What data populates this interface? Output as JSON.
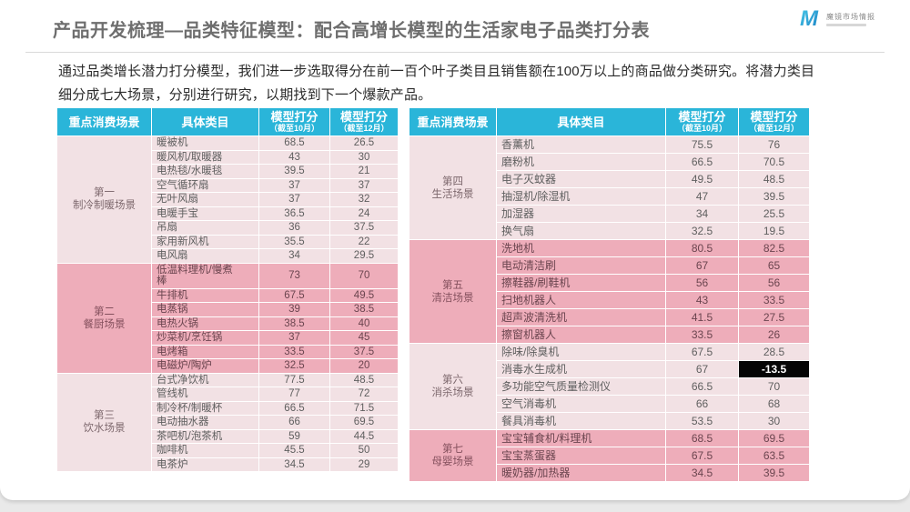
{
  "slide": {
    "title": "产品开发梳理—品类特征模型：配合高增长模型的生活家电子品类打分表",
    "intro_line1": "通过品类增长潜力打分模型，我们进一步选取得分在前一百个叶子类目且销售额在100万以上的商品做分类研究。将潜力类目",
    "intro_line2": "细分成七大场景，分别进行研究，以期找到下一个爆款产品。"
  },
  "logo": {
    "mark": "M",
    "name": "魔镜市场情报"
  },
  "colors": {
    "header_cyan": "#2ab5d9",
    "block_light_pink": "#f2e1e4",
    "block_dark_pink": "#eeadba",
    "highlight_bg": "#050505",
    "highlight_text": "#ffffff",
    "title_gray": "#6e6e6e"
  },
  "headers": {
    "scene": "重点消费场景",
    "category": "具体类目",
    "score_oct": "模型打分",
    "score_oct_period": "（截至10月）",
    "score_dec": "模型打分",
    "score_dec_period": "（截至12月）"
  },
  "tables": [
    {
      "id": "left",
      "scenes": [
        {
          "name_line1": "第一",
          "name_line2": "制冷制暖场景",
          "tone": "light",
          "rows": [
            {
              "category": "暖被机",
              "oct": "68.5",
              "dec": "26.5"
            },
            {
              "category": "暖风机/取暖器",
              "oct": "43",
              "dec": "30"
            },
            {
              "category": "电热毯/水暖毯",
              "oct": "39.5",
              "dec": "21"
            },
            {
              "category": "空气循环扇",
              "oct": "37",
              "dec": "37"
            },
            {
              "category": "无叶风扇",
              "oct": "37",
              "dec": "32"
            },
            {
              "category": "电暖手宝",
              "oct": "36.5",
              "dec": "24"
            },
            {
              "category": "吊扇",
              "oct": "36",
              "dec": "37.5"
            },
            {
              "category": "家用新风机",
              "oct": "35.5",
              "dec": "22"
            },
            {
              "category": "电风扇",
              "oct": "34",
              "dec": "29.5"
            }
          ]
        },
        {
          "name_line1": "第二",
          "name_line2": "餐厨场景",
          "tone": "dark",
          "rows": [
            {
              "category": "低温料理机/慢煮\n棒",
              "oct": "73",
              "dec": "70"
            },
            {
              "category": "牛排机",
              "oct": "67.5",
              "dec": "49.5"
            },
            {
              "category": "电蒸锅",
              "oct": "39",
              "dec": "38.5"
            },
            {
              "category": "电热火锅",
              "oct": "38.5",
              "dec": "40"
            },
            {
              "category": "炒菜机/烹饪锅",
              "oct": "37",
              "dec": "45"
            },
            {
              "category": "电烤箱",
              "oct": "33.5",
              "dec": "37.5"
            },
            {
              "category": "电磁炉/陶炉",
              "oct": "32.5",
              "dec": "20"
            }
          ]
        },
        {
          "name_line1": "第三",
          "name_line2": "饮水场景",
          "tone": "light",
          "rows": [
            {
              "category": "台式净饮机",
              "oct": "77.5",
              "dec": "48.5"
            },
            {
              "category": "管线机",
              "oct": "77",
              "dec": "72"
            },
            {
              "category": "制冷杯/制暖杯",
              "oct": "66.5",
              "dec": "71.5"
            },
            {
              "category": "电动抽水器",
              "oct": "66",
              "dec": "69.5"
            },
            {
              "category": "茶吧机/泡茶机",
              "oct": "59",
              "dec": "44.5"
            },
            {
              "category": "咖啡机",
              "oct": "45.5",
              "dec": "50"
            },
            {
              "category": "电茶炉",
              "oct": "34.5",
              "dec": "29"
            }
          ]
        }
      ]
    },
    {
      "id": "right",
      "scenes": [
        {
          "name_line1": "第四",
          "name_line2": "生活场景",
          "tone": "light",
          "rows": [
            {
              "category": "香薰机",
              "oct": "75.5",
              "dec": "76"
            },
            {
              "category": "磨粉机",
              "oct": "66.5",
              "dec": "70.5"
            },
            {
              "category": "电子灭蚊器",
              "oct": "49.5",
              "dec": "48.5"
            },
            {
              "category": "抽湿机/除湿机",
              "oct": "47",
              "dec": "39.5"
            },
            {
              "category": "加湿器",
              "oct": "34",
              "dec": "25.5"
            },
            {
              "category": "换气扇",
              "oct": "32.5",
              "dec": "19.5"
            }
          ]
        },
        {
          "name_line1": "第五",
          "name_line2": "清洁场景",
          "tone": "dark",
          "rows": [
            {
              "category": "洗地机",
              "oct": "80.5",
              "dec": "82.5"
            },
            {
              "category": "电动清洁刷",
              "oct": "67",
              "dec": "65"
            },
            {
              "category": "擦鞋器/刷鞋机",
              "oct": "56",
              "dec": "56"
            },
            {
              "category": "扫地机器人",
              "oct": "43",
              "dec": "33.5"
            },
            {
              "category": "超声波清洗机",
              "oct": "41.5",
              "dec": "27.5"
            },
            {
              "category": "擦窗机器人",
              "oct": "33.5",
              "dec": "26"
            }
          ]
        },
        {
          "name_line1": "第六",
          "name_line2": "消杀场景",
          "tone": "light",
          "rows": [
            {
              "category": "除味/除臭机",
              "oct": "67.5",
              "dec": "28.5"
            },
            {
              "category": "消毒水生成机",
              "oct": "67",
              "dec": "-13.5",
              "dec_highlight": true
            },
            {
              "category": "多功能空气质量检测仪",
              "oct": "66.5",
              "dec": "70"
            },
            {
              "category": "空气消毒机",
              "oct": "66",
              "dec": "68"
            },
            {
              "category": "餐具消毒机",
              "oct": "53.5",
              "dec": "30"
            }
          ]
        },
        {
          "name_line1": "第七",
          "name_line2": "母婴场景",
          "tone": "dark",
          "rows": [
            {
              "category": "宝宝辅食机/料理机",
              "oct": "68.5",
              "dec": "69.5"
            },
            {
              "category": "宝宝蒸蛋器",
              "oct": "67.5",
              "dec": "63.5"
            },
            {
              "category": "暖奶器/加热器",
              "oct": "34.5",
              "dec": "39.5"
            }
          ]
        }
      ]
    }
  ]
}
